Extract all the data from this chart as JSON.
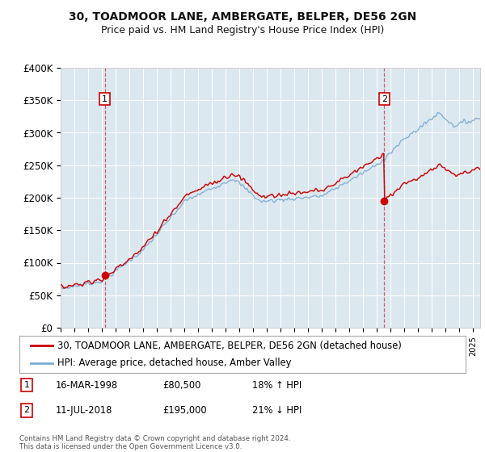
{
  "title1": "30, TOADMOOR LANE, AMBERGATE, BELPER, DE56 2GN",
  "title2": "Price paid vs. HM Land Registry's House Price Index (HPI)",
  "legend_line1": "30, TOADMOOR LANE, AMBERGATE, BELPER, DE56 2GN (detached house)",
  "legend_line2": "HPI: Average price, detached house, Amber Valley",
  "annotation1_date": "16-MAR-1998",
  "annotation1_price": "£80,500",
  "annotation1_hpi": "18% ↑ HPI",
  "annotation1_year": 1998.21,
  "annotation1_value": 80500,
  "annotation2_date": "11-JUL-2018",
  "annotation2_price": "£195,000",
  "annotation2_hpi": "21% ↓ HPI",
  "annotation2_year": 2018.53,
  "annotation2_value": 195000,
  "ylim": [
    0,
    400000
  ],
  "yticks": [
    0,
    50000,
    100000,
    150000,
    200000,
    250000,
    300000,
    350000,
    400000
  ],
  "ytick_labels": [
    "£0",
    "£50K",
    "£100K",
    "£150K",
    "£200K",
    "£250K",
    "£300K",
    "£350K",
    "£400K"
  ],
  "red_color": "#cc0000",
  "blue_color": "#7aadd4",
  "plot_bg": "#dce8f0",
  "footer": "Contains HM Land Registry data © Crown copyright and database right 2024.\nThis data is licensed under the Open Government Licence v3.0.",
  "xmin": 1995.0,
  "xmax": 2025.5
}
